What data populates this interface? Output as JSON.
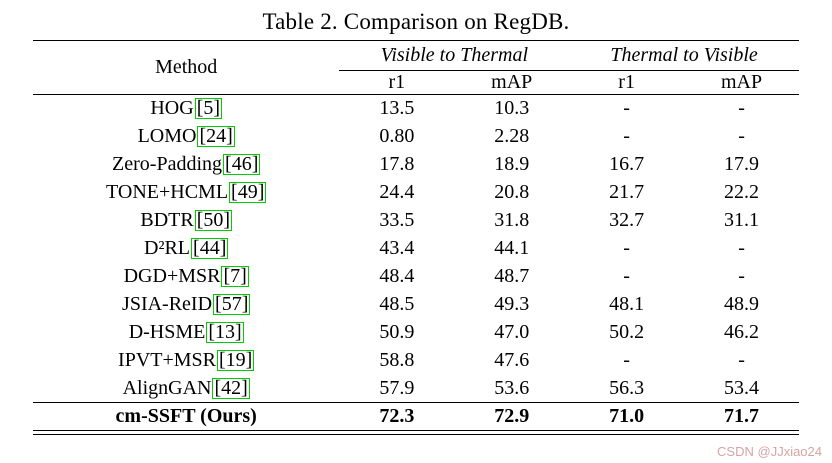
{
  "title": "Table 2. Comparison on RegDB.",
  "watermark": "CSDN @JJxiao24",
  "colors": {
    "citation_box": "#00cc00",
    "watermark": "#d6a3a3",
    "rule": "#000000"
  },
  "table": {
    "method_header": "Method",
    "group_headers": [
      "Visible to Thermal",
      "Thermal to Visible"
    ],
    "sub_headers": [
      "r1",
      "mAP",
      "r1",
      "mAP"
    ],
    "rows": [
      {
        "method": "HOG",
        "cite": "5",
        "values": [
          "13.5",
          "10.3",
          "-",
          "-"
        ],
        "bold": false
      },
      {
        "method": "LOMO",
        "cite": "24",
        "values": [
          "0.80",
          "2.28",
          "-",
          "-"
        ],
        "bold": false
      },
      {
        "method": "Zero-Padding",
        "cite": "46",
        "values": [
          "17.8",
          "18.9",
          "16.7",
          "17.9"
        ],
        "bold": false
      },
      {
        "method": "TONE+HCML",
        "cite": "49",
        "values": [
          "24.4",
          "20.8",
          "21.7",
          "22.2"
        ],
        "bold": false
      },
      {
        "method": "BDTR",
        "cite": "50",
        "values": [
          "33.5",
          "31.8",
          "32.7",
          "31.1"
        ],
        "bold": false
      },
      {
        "method": "D²RL",
        "cite": "44",
        "values": [
          "43.4",
          "44.1",
          "-",
          "-"
        ],
        "bold": false
      },
      {
        "method": "DGD+MSR",
        "cite": "7",
        "values": [
          "48.4",
          "48.7",
          "-",
          "-"
        ],
        "bold": false
      },
      {
        "method": "JSIA-ReID",
        "cite": "57",
        "values": [
          "48.5",
          "49.3",
          "48.1",
          "48.9"
        ],
        "bold": false
      },
      {
        "method": "D-HSME",
        "cite": "13",
        "values": [
          "50.9",
          "47.0",
          "50.2",
          "46.2"
        ],
        "bold": false
      },
      {
        "method": "IPVT+MSR",
        "cite": "19",
        "values": [
          "58.8",
          "47.6",
          "-",
          "-"
        ],
        "bold": false
      },
      {
        "method": "AlignGAN",
        "cite": "42",
        "values": [
          "57.9",
          "53.6",
          "56.3",
          "53.4"
        ],
        "bold": false
      },
      {
        "method": "cm-SSFT (Ours)",
        "cite": null,
        "values": [
          "72.3",
          "72.9",
          "71.0",
          "71.7"
        ],
        "bold": true
      }
    ]
  }
}
